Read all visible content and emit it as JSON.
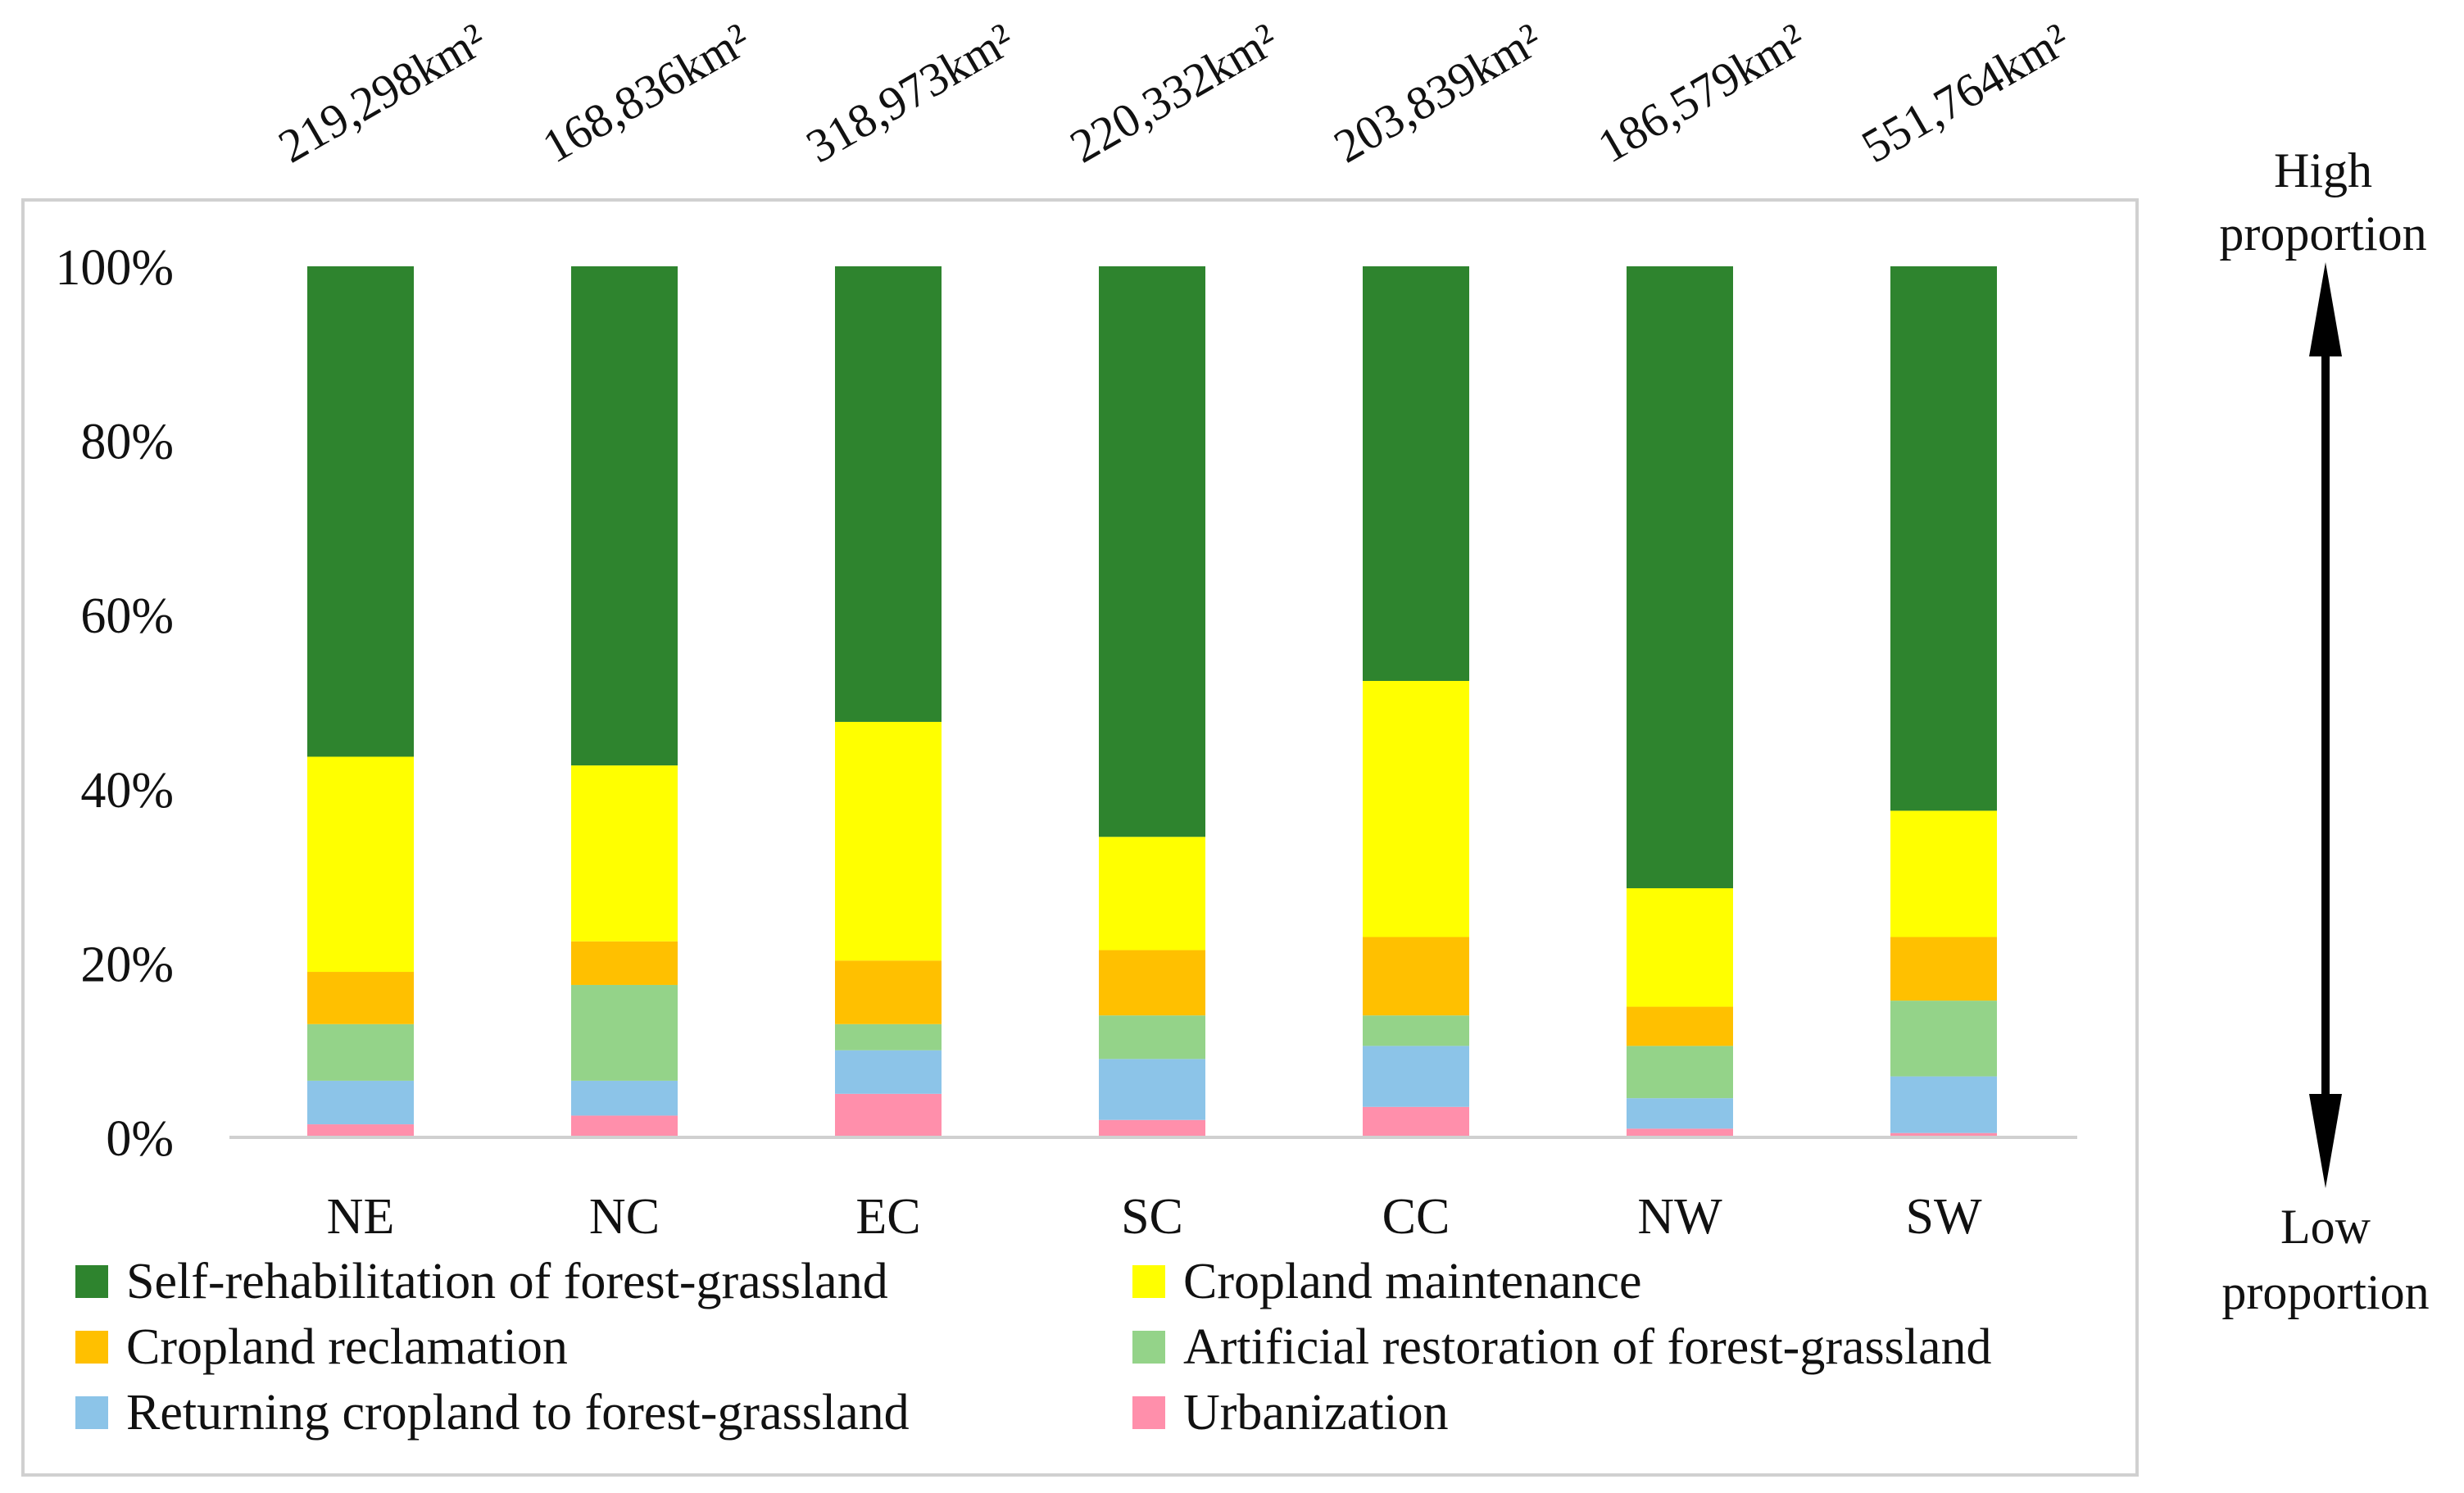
{
  "chart_data": {
    "type": "bar",
    "stacked": true,
    "categories": [
      "NE",
      "NC",
      "EC",
      "SC",
      "CC",
      "NW",
      "SW"
    ],
    "area_labels": [
      "219,298km²",
      "168,836km²",
      "318,973km²",
      "220,332km²",
      "203,839km²",
      "186,579km²",
      "551,764km²"
    ],
    "ylim": [
      0,
      100
    ],
    "yticks": [
      0,
      20,
      40,
      60,
      80,
      100
    ],
    "ytick_labels": [
      "0%",
      "20%",
      "40%",
      "60%",
      "80%",
      "100%"
    ],
    "series": [
      {
        "name": "Urbanization",
        "color": "#ff8fab",
        "values": [
          1.5,
          2.5,
          5.0,
          2.0,
          3.5,
          1.0,
          0.5
        ]
      },
      {
        "name": "Returning cropland to forest-grassland",
        "color": "#8cc4e8",
        "values": [
          5.0,
          4.0,
          5.0,
          7.0,
          7.0,
          3.5,
          6.5
        ]
      },
      {
        "name": "Artificial restoration of forest-grassland",
        "color": "#94d389",
        "values": [
          6.5,
          11.0,
          3.0,
          5.0,
          3.5,
          6.0,
          8.7
        ]
      },
      {
        "name": "Cropland reclamation",
        "color": "#ffc000",
        "values": [
          6.0,
          5.0,
          7.3,
          7.5,
          9.0,
          4.5,
          7.3
        ]
      },
      {
        "name": "Cropland maintenance",
        "color": "#ffff00",
        "values": [
          24.7,
          20.2,
          27.4,
          13.0,
          29.4,
          13.6,
          14.5
        ]
      },
      {
        "name": "Self-rehabilitation of forest-grassland",
        "color": "#2e842e",
        "values": [
          56.3,
          57.3,
          52.3,
          65.5,
          47.6,
          71.4,
          62.5
        ]
      }
    ],
    "legend_order": [
      "Self-rehabilitation of forest-grassland",
      "Cropland maintenance",
      "Cropland reclamation",
      "Artificial restoration of forest-grassland",
      "Returning cropland to forest-grassland",
      "Urbanization"
    ],
    "side_annotation": {
      "top_label_lines": [
        "High",
        "proportion"
      ],
      "bottom_label_lines": [
        "Low",
        "proportion"
      ]
    }
  }
}
